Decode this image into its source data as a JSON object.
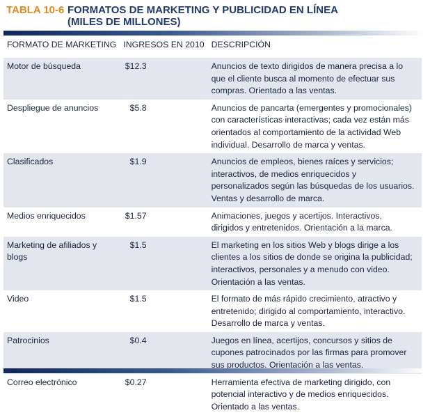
{
  "title": {
    "label": "TABLA 10-6",
    "text": "FORMATOS DE MARKETING Y PUBLICIDAD EN LÍNEA",
    "subtitle": "(MILES DE MILLONES)"
  },
  "headers": [
    "FORMATO DE MARKETING",
    "INGRESOS EN 2010",
    "DESCRIPCIÓN"
  ],
  "rows": [
    {
      "format": "Motor de búsqueda",
      "revenue": "$12.3",
      "desc": "Anuncios de texto dirigidos de manera precisa a lo que el cliente busca al momento de efectuar sus compras. Orientado a las ventas."
    },
    {
      "format": "Despliegue de anuncios",
      "revenue": "$5.8",
      "desc": "Anuncios de pancarta (emergentes y promocionales) con características interactivas; cada vez están más orientados al comportamiento de la actividad Web individual. Desarrollo de marca y ventas."
    },
    {
      "format": "Clasificados",
      "revenue": "$1.9",
      "desc": "Anuncios de empleos, bienes raíces y servicios; interactivos, de medios enriquecidos y personalizados según las búsquedas de los usuarios. Ventas y desarrollo de marca."
    },
    {
      "format": "Medios enriquecidos",
      "revenue": "$1.57",
      "desc": "Animaciones, juegos y acertijos. Interactivos, dirigidos y entretenidos. Orientación a la marca."
    },
    {
      "format": "Marketing de afiliados y blogs",
      "revenue": "$1.5",
      "desc": "El marketing en los sitios Web y blogs dirige a los clientes a los sitios de donde se origina la publicidad; interactivos, personales y a menudo con video. Orientación a las ventas."
    },
    {
      "format": "Video",
      "revenue": "$1.5",
      "desc": "El formato de más rápido crecimiento, atractivo y entretenido; dirigido al comportamiento, interactivo. Desarrollo de marca y ventas."
    },
    {
      "format": "Patrocinios",
      "revenue": "$0.4",
      "desc": "Juegos en línea, acertijos, concursos y sitios de cupones patrocinados por las firmas para promover sus productos. Orientación a las ventas."
    },
    {
      "format": "Correo electrónico",
      "revenue": "$0.27",
      "desc": "Herramienta efectiva de marketing dirigido, con potencial interactivo y de medios enriquecidos. Orientado a las ventas."
    }
  ]
}
